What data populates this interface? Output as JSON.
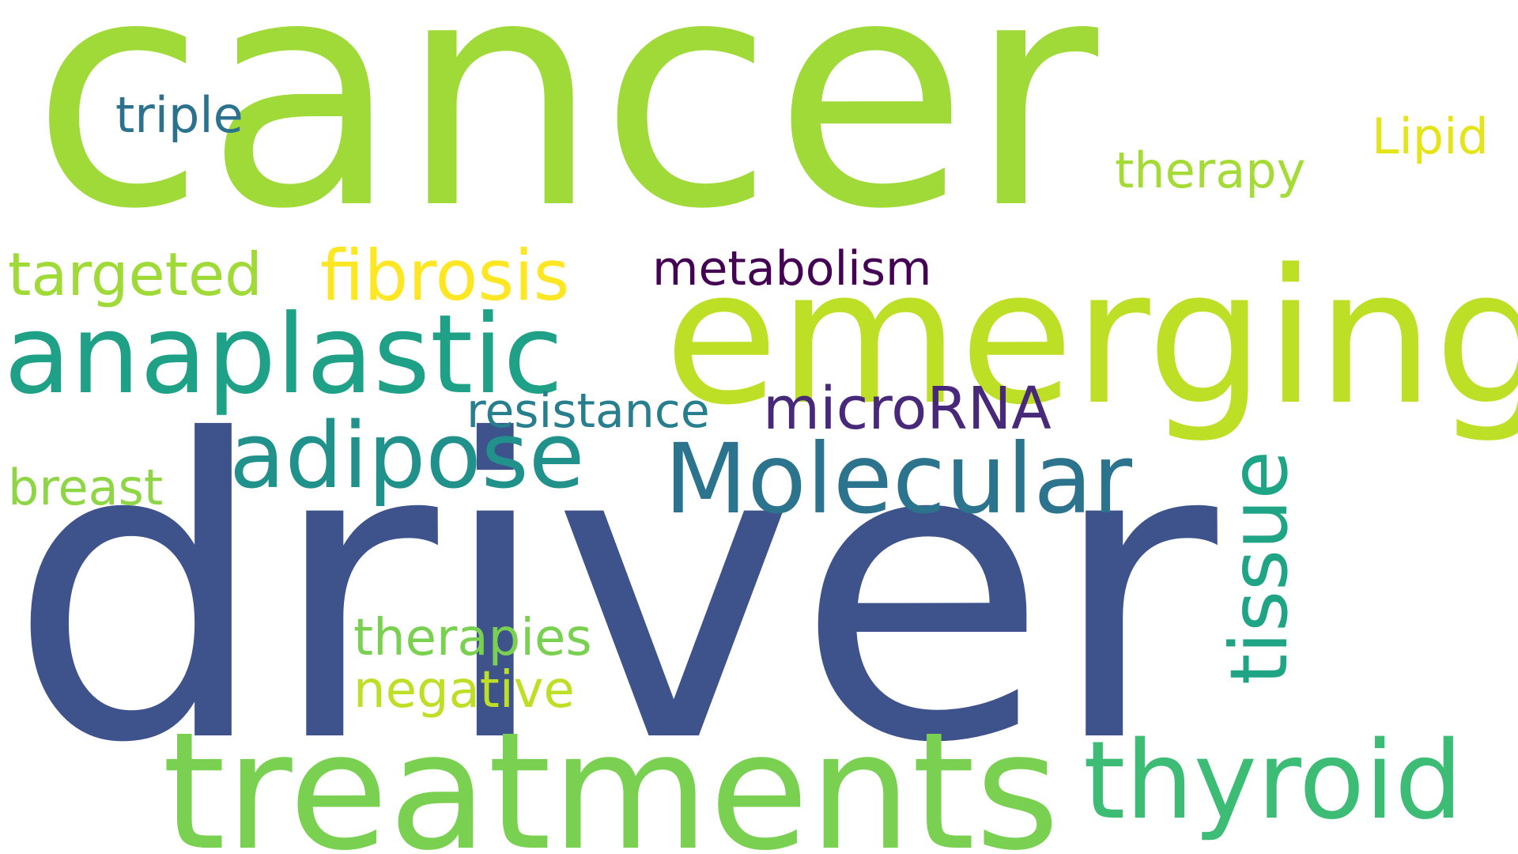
{
  "word_cloud": {
    "background_color": "#ffffff",
    "words": [
      {
        "text": "cancer",
        "color": "#a0da39"
      },
      {
        "text": "driver",
        "color": "#3e528b"
      },
      {
        "text": "emerging",
        "color": "#bddf26"
      },
      {
        "text": "treatments",
        "color": "#7ad151"
      },
      {
        "text": "anaplastic",
        "color": "#1fa187"
      },
      {
        "text": "thyroid",
        "color": "#3cbc75"
      },
      {
        "text": "Molecular",
        "color": "#2c738e"
      },
      {
        "text": "adipose",
        "color": "#21918c"
      },
      {
        "text": "tissue",
        "color": "#20a486"
      },
      {
        "text": "fibrosis",
        "color": "#fde725"
      },
      {
        "text": "targeted",
        "color": "#a0da39"
      },
      {
        "text": "metabolism",
        "color": "#440154"
      },
      {
        "text": "microRNA",
        "color": "#482878"
      },
      {
        "text": "resistance",
        "color": "#277f8e"
      },
      {
        "text": "therapies",
        "color": "#7ad151"
      },
      {
        "text": "negative",
        "color": "#bddf26"
      },
      {
        "text": "breast",
        "color": "#8ed645"
      },
      {
        "text": "triple",
        "color": "#2c728e"
      },
      {
        "text": "therapy",
        "color": "#a5db36"
      },
      {
        "text": "Lipid",
        "color": "#e5e419"
      }
    ]
  }
}
